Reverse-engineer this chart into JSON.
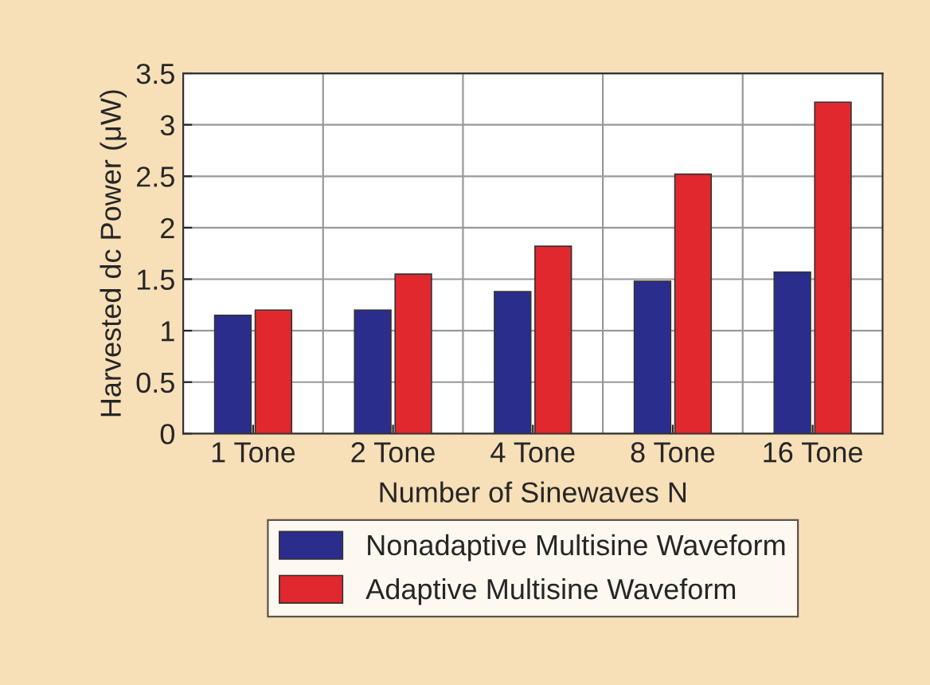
{
  "chart_data": {
    "type": "bar",
    "xlabel": "Number of Sinewaves N",
    "ylabel": "Harvested dc Power (μW)",
    "categories": [
      "1 Tone",
      "2 Tone",
      "4 Tone",
      "8 Tone",
      "16 Tone"
    ],
    "series": [
      {
        "name": "Nonadaptive Multisine Waveform",
        "color": "#2b2d8c",
        "values": [
          1.15,
          1.2,
          1.38,
          1.48,
          1.57
        ]
      },
      {
        "name": "Adaptive Multisine Waveform",
        "color": "#e0282e",
        "values": [
          1.2,
          1.55,
          1.82,
          2.52,
          3.22
        ]
      }
    ],
    "ylim": [
      0,
      3.5
    ],
    "yticks": [
      0,
      0.5,
      1,
      1.5,
      2,
      2.5,
      3,
      3.5
    ],
    "grid": true,
    "legend": "bottom"
  }
}
